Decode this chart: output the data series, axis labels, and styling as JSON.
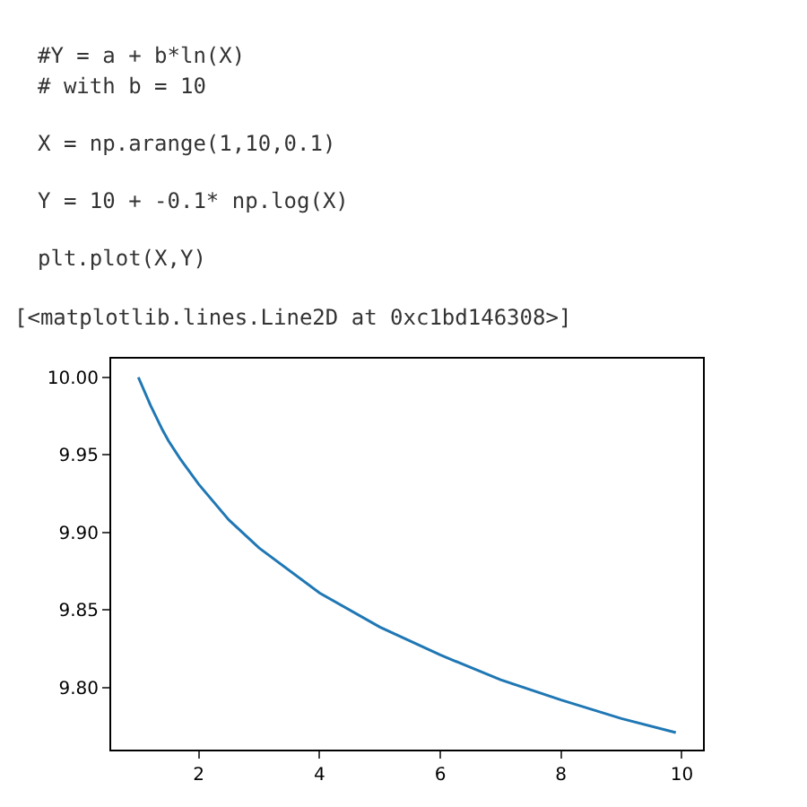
{
  "chart_data": {
    "type": "line",
    "annotations": [
      "#Y = a + b*ln(X)",
      "# with b = 10",
      "X = np.arange(1,10,0.1)",
      "Y = 10 + -0.1* np.log(X)",
      "plt.plot(X,Y)",
      "[<matplotlib.lines.Line2D at 0xc1bd146308>]"
    ],
    "x": [
      1,
      1.2,
      1.4,
      1.5,
      1.7,
      2,
      2.5,
      3,
      4,
      5,
      6,
      7,
      8,
      9,
      9.9
    ],
    "series": [
      {
        "color": "#1f77b4",
        "values": [
          10.0,
          9.982,
          9.966,
          9.959,
          9.947,
          9.931,
          9.908,
          9.89,
          9.861,
          9.839,
          9.821,
          9.805,
          9.792,
          9.78,
          9.771
        ]
      }
    ],
    "xlim": [
      0.55,
      10.35
    ],
    "ylim": [
      9.76,
      10.012
    ],
    "xticks": [
      2,
      4,
      6,
      8,
      10
    ],
    "yticks": [
      {
        "value": 9.8,
        "label": "9.80"
      },
      {
        "value": 9.85,
        "label": "9.85"
      },
      {
        "value": 9.9,
        "label": "9.90"
      },
      {
        "value": 9.95,
        "label": "9.95"
      },
      {
        "value": 10.0,
        "label": "10.00"
      }
    ],
    "legend": false
  }
}
